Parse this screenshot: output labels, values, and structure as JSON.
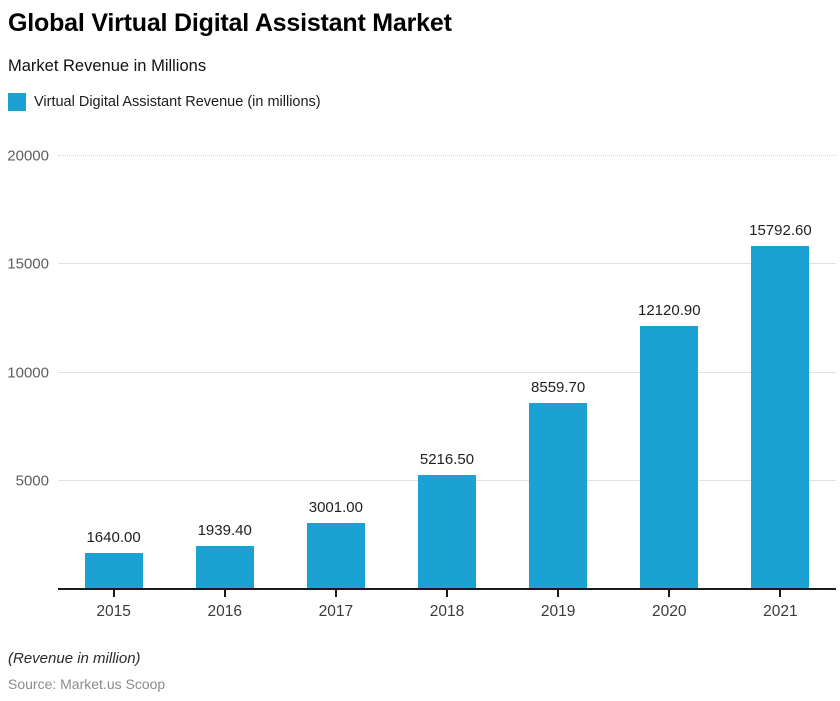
{
  "header": {
    "title": "Global Virtual Digital Assistant Market",
    "subtitle": "Market Revenue in Millions"
  },
  "legend": {
    "label": "Virtual Digital Assistant Revenue (in millions)",
    "swatch_color": "#1BA1D2"
  },
  "chart_data": {
    "type": "bar",
    "title": "Global Virtual Digital Assistant Market",
    "subtitle": "Market Revenue in Millions",
    "series_name": "Virtual Digital Assistant Revenue (in millions)",
    "categories": [
      "2015",
      "2016",
      "2017",
      "2018",
      "2019",
      "2020",
      "2021"
    ],
    "values": [
      1640.0,
      1939.4,
      3001.0,
      5216.5,
      8559.7,
      12120.9,
      15792.6
    ],
    "value_labels": [
      "1640.00",
      "1939.40",
      "3001.00",
      "5216.50",
      "8559.70",
      "12120.90",
      "15792.60"
    ],
    "xlabel": "",
    "ylabel": "",
    "ylim": [
      0,
      20000
    ],
    "yticks": [
      5000,
      10000,
      15000,
      20000
    ],
    "ytick_labels": [
      "5000",
      "10000",
      "15000",
      "20000"
    ],
    "grid": true,
    "legend_position": "top-left",
    "bar_color": "#1BA1D2"
  },
  "footer": {
    "note": "(Revenue in million)",
    "source": "Source: Market.us Scoop"
  }
}
